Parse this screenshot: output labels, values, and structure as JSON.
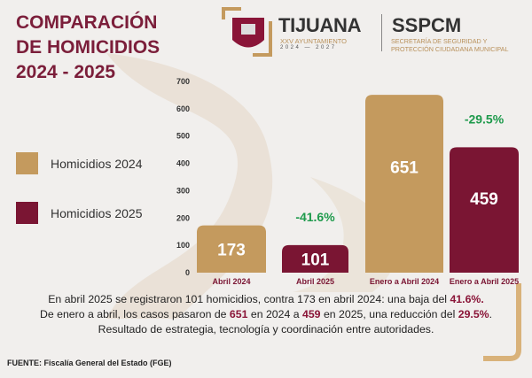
{
  "header": {
    "title_lines": [
      "COMPARACIÓN",
      "DE HOMICIDIOS",
      "2024 - 2025"
    ],
    "logo": {
      "name": "TIJUANA",
      "sub": "XXV AYUNTAMIENTO",
      "years": "2024 — 2027",
      "org": "SSPCM",
      "org_line1": "SECRETARÍA DE SEGURIDAD Y",
      "org_line2": "PROTECCIÓN CIUDADANA MUNICIPAL"
    }
  },
  "colors": {
    "gold": "#c49a5e",
    "maroon": "#7a1533",
    "green": "#1e9a4c",
    "title": "#7b1e3a"
  },
  "legend": [
    {
      "label": "Homicidios 2024",
      "color": "#c49a5e"
    },
    {
      "label": "Homicidios 2025",
      "color": "#7a1533"
    }
  ],
  "chart_data": {
    "type": "bar",
    "categories": [
      "Abril 2024",
      "Abril 2025",
      "Enero a Abril 2024",
      "Enero a Abril 2025"
    ],
    "values": [
      173,
      101,
      651,
      459
    ],
    "series_of": [
      "2024",
      "2025",
      "2024",
      "2025"
    ],
    "ylim": [
      0,
      700
    ],
    "yticks": [
      0,
      100,
      200,
      300,
      400,
      500,
      600,
      700
    ],
    "annotations": [
      {
        "category": "Abril 2025",
        "text": "-41.6%"
      },
      {
        "category": "Enero a Abril 2025",
        "text": "-29.5%"
      }
    ],
    "grid": false
  },
  "summary": {
    "l1a": "En abril 2025 se registraron 101 homicidios, contra 173 en abril 2024: una baja del ",
    "l1b": "41.6%.",
    "l2a": "De enero a abril, los casos pasaron de ",
    "l2b": "651",
    "l2c": " en 2024 a ",
    "l2d": "459",
    "l2e": " en 2025, una reducción del ",
    "l2f": "29.5%",
    "l2g": ".",
    "l3": "Resultado de estrategia, tecnología y coordinación entre autoridades."
  },
  "source": "FUENTE: Fiscalía General del Estado (FGE)"
}
